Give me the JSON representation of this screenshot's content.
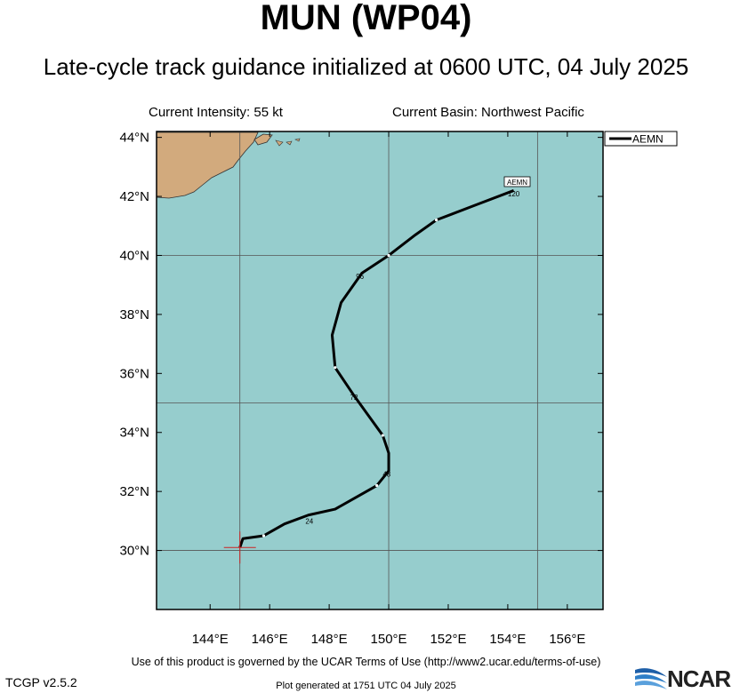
{
  "title": "MUN (WP04)",
  "subtitle": "Late-cycle track guidance initialized at 0600 UTC, 04 July 2025",
  "current_intensity": "Current Intensity: 55 kt",
  "current_basin": "Current Basin: Northwest Pacific",
  "legend": {
    "label": "AEMN"
  },
  "track_label": "AEMN",
  "lat_ticks": [
    "44°N",
    "42°N",
    "40°N",
    "38°N",
    "36°N",
    "34°N",
    "32°N",
    "30°N"
  ],
  "lon_ticks": [
    "144°E",
    "146°E",
    "148°E",
    "150°E",
    "152°E",
    "154°E",
    "156°E"
  ],
  "hour_labels": [
    "24",
    "48",
    "72",
    "96",
    "120"
  ],
  "footer": "Use of this product is governed by the UCAR Terms of Use (http://www2.ucar.edu/terms-of-use)",
  "version": "TCGP v2.5.2",
  "generated": "Plot generated at 1751 UTC   04 July 2025",
  "logo_text": "NCAR",
  "colors": {
    "ocean": "#96cdcd",
    "land": "#d2aa7d",
    "track": "#000000",
    "marker": "#cc2222"
  },
  "map": {
    "lon_range": [
      142.2,
      157.2
    ],
    "lat_range": [
      28.0,
      44.2
    ],
    "grid_lons": [
      145,
      150,
      155
    ],
    "grid_lats": [
      30,
      35,
      40
    ]
  },
  "chart_data": {
    "type": "line",
    "series": [
      {
        "name": "AEMN",
        "lon": [
          145.0,
          145.1,
          145.8,
          146.5,
          147.3,
          148.2,
          148.9,
          149.6,
          150.0,
          150.0,
          149.8,
          149.3,
          148.8,
          148.2,
          148.1,
          148.4,
          149.1,
          150.0,
          150.9,
          151.6,
          152.9,
          154.2
        ],
        "lat": [
          30.1,
          30.4,
          30.5,
          30.9,
          31.2,
          31.4,
          31.8,
          32.2,
          32.7,
          33.3,
          33.9,
          34.6,
          35.3,
          36.2,
          37.3,
          38.4,
          39.4,
          40.0,
          40.7,
          41.2,
          41.7,
          42.2
        ],
        "hour_labels": [
          {
            "label": "24",
            "lon": 147.2,
            "lat": 30.9
          },
          {
            "label": "48",
            "lon": 149.8,
            "lat": 32.5
          },
          {
            "label": "72",
            "lon": 148.7,
            "lat": 35.1
          },
          {
            "label": "96",
            "lon": 148.9,
            "lat": 39.2
          },
          {
            "label": "120",
            "lon": 154.0,
            "lat": 42.0
          }
        ]
      }
    ],
    "initial_position": {
      "lon": 145.0,
      "lat": 30.1
    },
    "xlabel": "",
    "ylabel": ""
  }
}
